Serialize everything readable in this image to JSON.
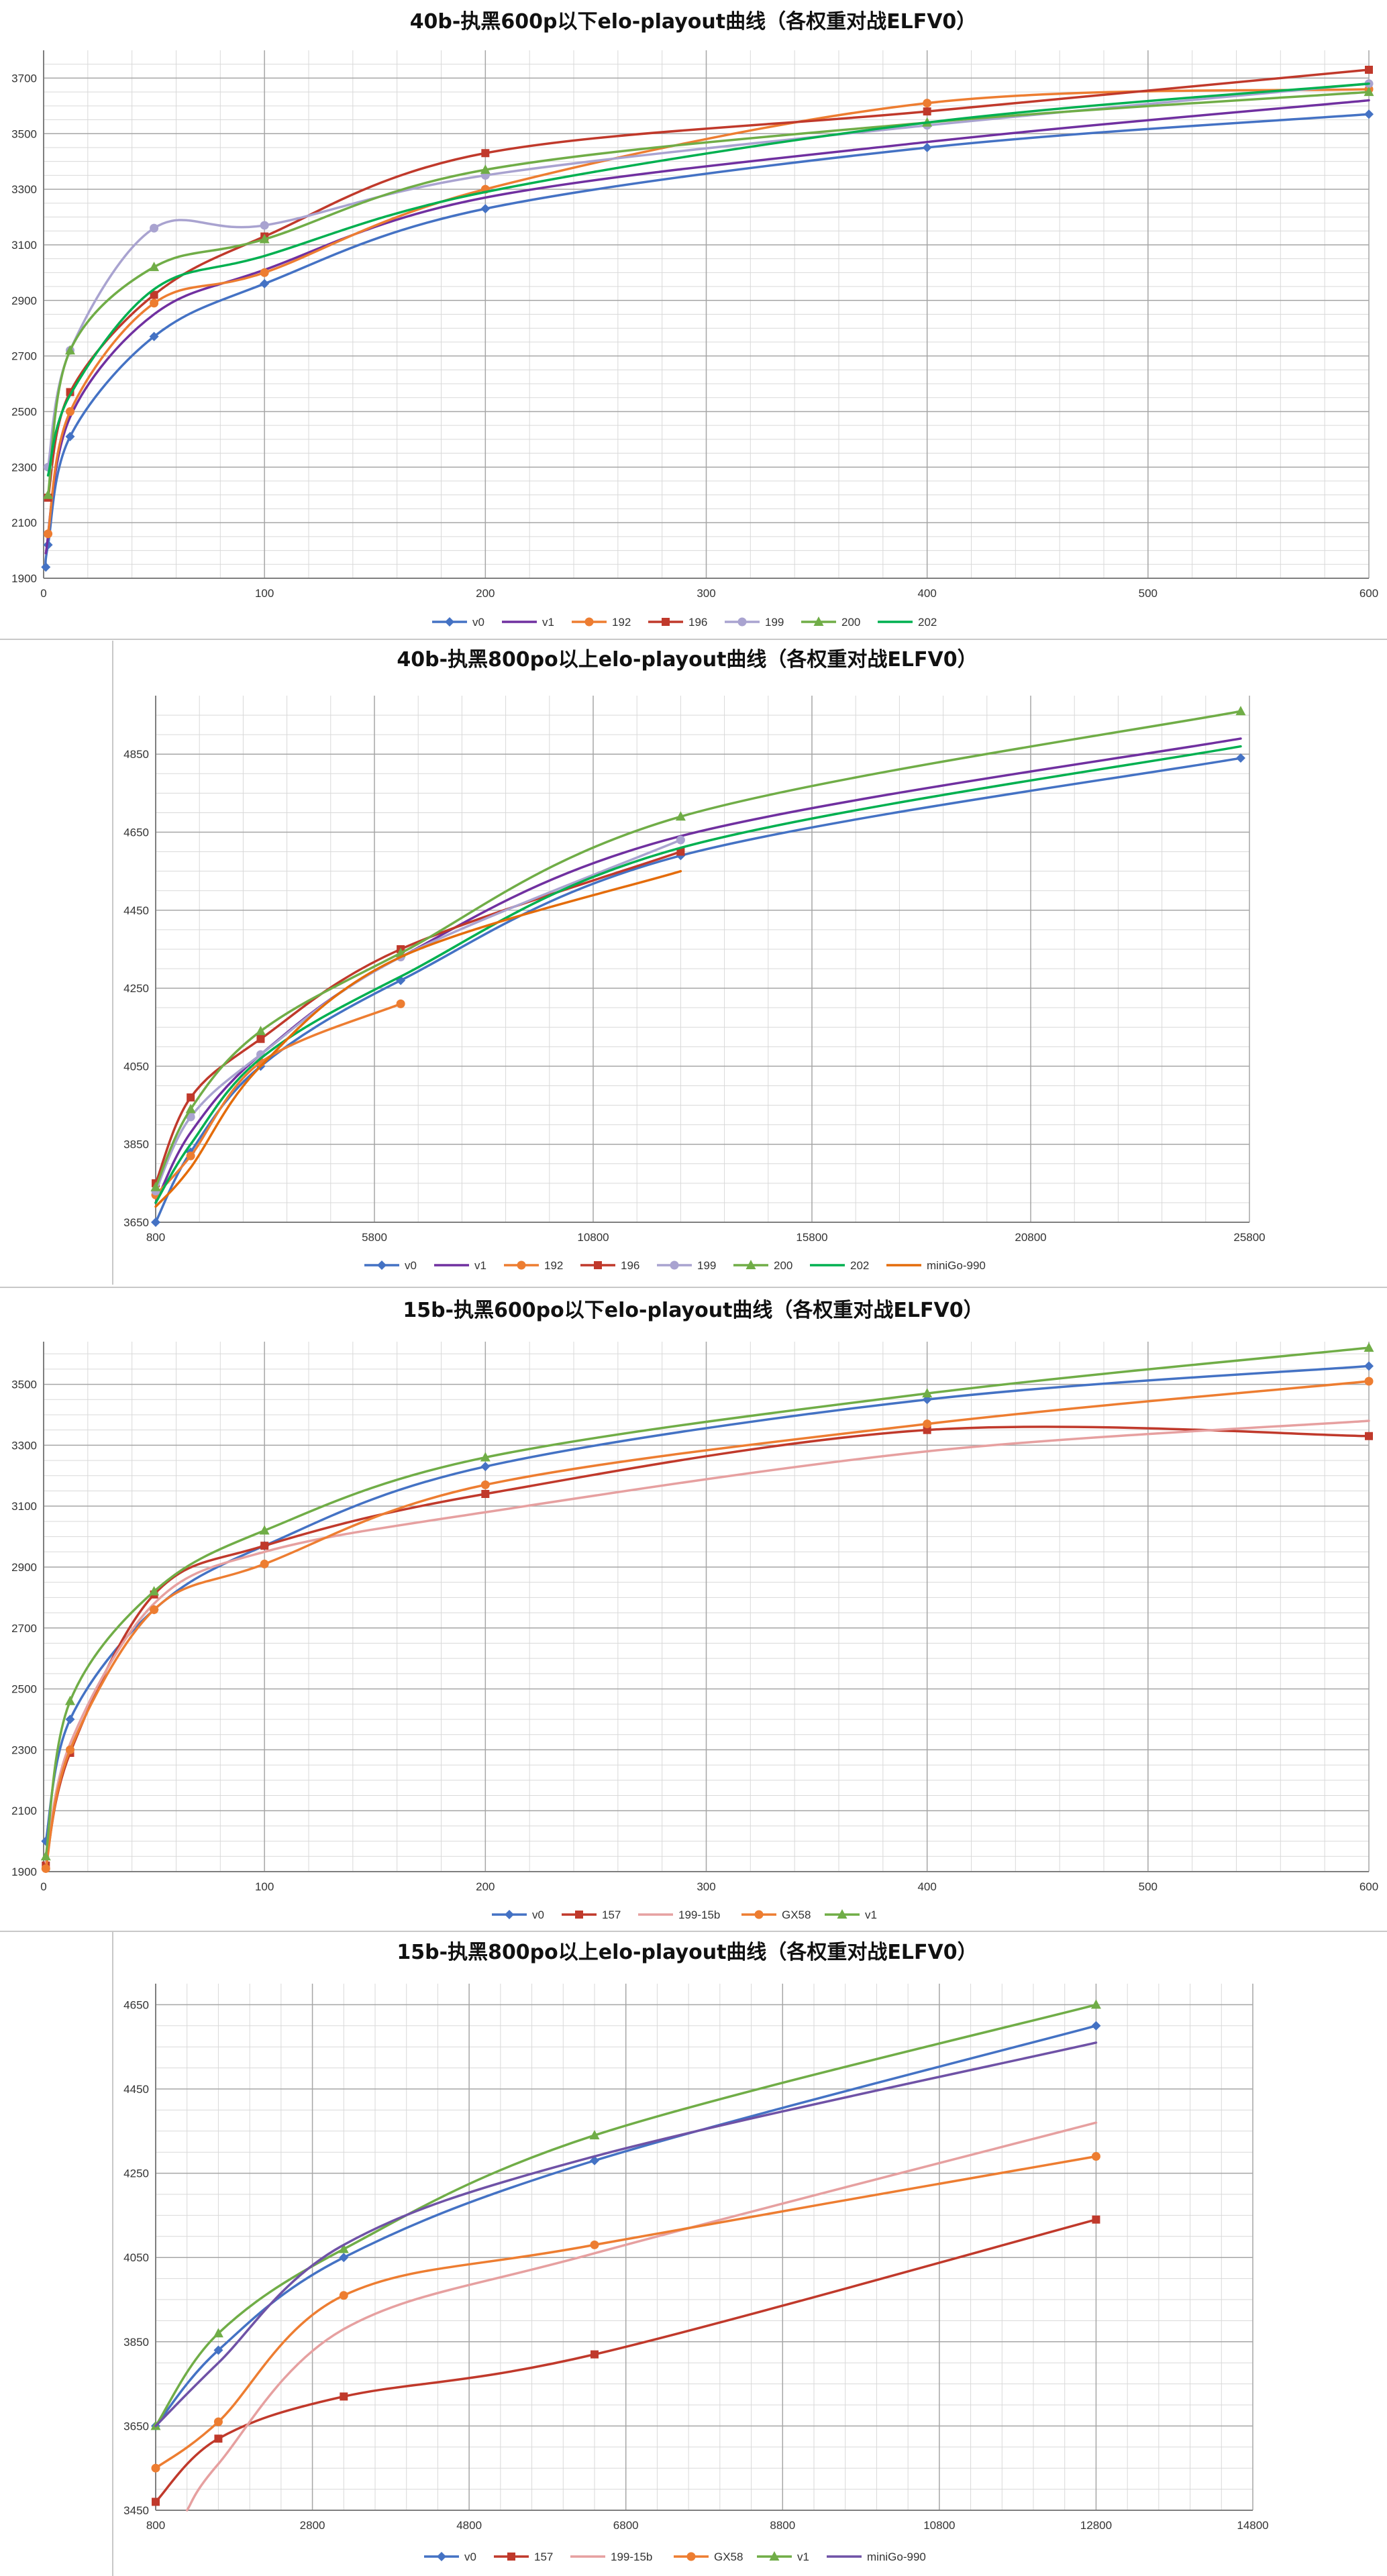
{
  "chart_data": [
    {
      "type": "line",
      "title": "40b-执黑600p以下elo-playout曲线（各权重对战ELFV0）",
      "xlim": [
        0,
        600
      ],
      "ylim": [
        1900,
        3800
      ],
      "xticks": [
        0,
        100,
        200,
        300,
        400,
        500,
        600
      ],
      "yticks": [
        1900,
        2100,
        2300,
        2500,
        2700,
        2900,
        3100,
        3300,
        3500,
        3700
      ],
      "x_minor_step": 20,
      "y_minor_step": 50,
      "grid": true,
      "legend": "bottom",
      "series": [
        {
          "name": "v0",
          "color": "#4472C4",
          "marker": "diamond",
          "points": [
            [
              1,
              1940
            ],
            [
              2,
              2020
            ],
            [
              12,
              2410
            ],
            [
              50,
              2770
            ],
            [
              100,
              2960
            ],
            [
              200,
              3230
            ],
            [
              400,
              3450
            ],
            [
              600,
              3570
            ]
          ]
        },
        {
          "name": "v1",
          "color": "#7030A0",
          "marker": "none",
          "points": [
            [
              1,
              1990
            ],
            [
              12,
              2480
            ],
            [
              50,
              2850
            ],
            [
              100,
              3010
            ],
            [
              200,
              3270
            ],
            [
              400,
              3470
            ],
            [
              600,
              3620
            ]
          ]
        },
        {
          "name": "192",
          "color": "#ED7D31",
          "marker": "circle",
          "points": [
            [
              2,
              2060
            ],
            [
              12,
              2500
            ],
            [
              50,
              2890
            ],
            [
              100,
              3000
            ],
            [
              200,
              3300
            ],
            [
              400,
              3610
            ],
            [
              600,
              3660
            ]
          ]
        },
        {
          "name": "196",
          "color": "#C0392B",
          "marker": "square",
          "points": [
            [
              2,
              2190
            ],
            [
              12,
              2570
            ],
            [
              50,
              2920
            ],
            [
              100,
              3130
            ],
            [
              200,
              3430
            ],
            [
              400,
              3580
            ],
            [
              600,
              3730
            ]
          ]
        },
        {
          "name": "199",
          "color": "#A9A3D0",
          "marker": "circle",
          "points": [
            [
              2,
              2300
            ],
            [
              12,
              2720
            ],
            [
              50,
              3160
            ],
            [
              100,
              3170
            ],
            [
              200,
              3350
            ],
            [
              400,
              3530
            ],
            [
              600,
              3680
            ]
          ]
        },
        {
          "name": "200",
          "color": "#70AD47",
          "marker": "triangle",
          "points": [
            [
              2,
              2200
            ],
            [
              12,
              2720
            ],
            [
              50,
              3020
            ],
            [
              100,
              3120
            ],
            [
              200,
              3370
            ],
            [
              400,
              3540
            ],
            [
              600,
              3650
            ]
          ]
        },
        {
          "name": "202",
          "color": "#00B050",
          "marker": "none",
          "points": [
            [
              2,
              2270
            ],
            [
              12,
              2560
            ],
            [
              50,
              2940
            ],
            [
              100,
              3060
            ],
            [
              200,
              3290
            ],
            [
              400,
              3540
            ],
            [
              600,
              3680
            ]
          ]
        }
      ]
    },
    {
      "type": "line",
      "title": "40b-执黑800po以上elo-playout曲线（各权重对战ELFV0）",
      "xlim": [
        800,
        25800
      ],
      "ylim": [
        3650,
        5000
      ],
      "xticks": [
        800,
        5800,
        10800,
        15800,
        20800,
        25800
      ],
      "yticks": [
        3650,
        3850,
        4050,
        4250,
        4450,
        4650,
        4850
      ],
      "x_minor_step": 1000,
      "y_minor_step": 50,
      "grid": true,
      "legend": "bottom",
      "series": [
        {
          "name": "v0",
          "color": "#4472C4",
          "marker": "diamond",
          "points": [
            [
              800,
              3650
            ],
            [
              1600,
              3830
            ],
            [
              3200,
              4050
            ],
            [
              6400,
              4270
            ],
            [
              12800,
              4590
            ],
            [
              25600,
              4840
            ]
          ]
        },
        {
          "name": "v1",
          "color": "#7030A0",
          "marker": "none",
          "points": [
            [
              800,
              3700
            ],
            [
              1600,
              3880
            ],
            [
              3200,
              4080
            ],
            [
              6400,
              4330
            ],
            [
              12800,
              4640
            ],
            [
              25600,
              4890
            ]
          ]
        },
        {
          "name": "192",
          "color": "#ED7D31",
          "marker": "circle",
          "points": [
            [
              800,
              3720
            ],
            [
              1600,
              3820
            ],
            [
              3200,
              4060
            ],
            [
              6400,
              4210
            ]
          ]
        },
        {
          "name": "196",
          "color": "#C0392B",
          "marker": "square",
          "points": [
            [
              800,
              3750
            ],
            [
              1600,
              3970
            ],
            [
              3200,
              4120
            ],
            [
              6400,
              4350
            ],
            [
              12800,
              4600
            ]
          ]
        },
        {
          "name": "199",
          "color": "#A9A3D0",
          "marker": "circle",
          "points": [
            [
              800,
              3730
            ],
            [
              1600,
              3920
            ],
            [
              3200,
              4080
            ],
            [
              6400,
              4330
            ],
            [
              12800,
              4630
            ]
          ]
        },
        {
          "name": "200",
          "color": "#70AD47",
          "marker": "triangle",
          "points": [
            [
              800,
              3740
            ],
            [
              1600,
              3940
            ],
            [
              3200,
              4140
            ],
            [
              6400,
              4340
            ],
            [
              12800,
              4690
            ],
            [
              25600,
              4960
            ]
          ]
        },
        {
          "name": "202",
          "color": "#00B050",
          "marker": "none",
          "points": [
            [
              800,
              3700
            ],
            [
              1600,
              3850
            ],
            [
              3200,
              4070
            ],
            [
              6400,
              4280
            ],
            [
              12800,
              4610
            ],
            [
              25600,
              4870
            ]
          ]
        },
        {
          "name": "miniGo-990",
          "color": "#E46C0A",
          "marker": "none",
          "points": [
            [
              800,
              3690
            ],
            [
              1600,
              3790
            ],
            [
              3200,
              4050
            ],
            [
              6400,
              4330
            ],
            [
              12800,
              4550
            ]
          ]
        }
      ]
    },
    {
      "type": "line",
      "title": "15b-执黑600po以下elo-playout曲线（各权重对战ELFV0）",
      "xlim": [
        0,
        600
      ],
      "ylim": [
        1900,
        3640
      ],
      "xticks": [
        0,
        100,
        200,
        300,
        400,
        500,
        600
      ],
      "yticks": [
        1900,
        2100,
        2300,
        2500,
        2700,
        2900,
        3100,
        3300,
        3500
      ],
      "x_minor_step": 20,
      "y_minor_step": 50,
      "grid": true,
      "legend": "bottom",
      "series": [
        {
          "name": "v0",
          "color": "#4472C4",
          "marker": "diamond",
          "points": [
            [
              1,
              2000
            ],
            [
              12,
              2400
            ],
            [
              50,
              2760
            ],
            [
              100,
              2970
            ],
            [
              200,
              3230
            ],
            [
              400,
              3450
            ],
            [
              600,
              3560
            ]
          ]
        },
        {
          "name": "157",
          "color": "#C0392B",
          "marker": "square",
          "points": [
            [
              1,
              1920
            ],
            [
              12,
              2290
            ],
            [
              50,
              2810
            ],
            [
              100,
              2970
            ],
            [
              200,
              3140
            ],
            [
              400,
              3350
            ],
            [
              600,
              3330
            ]
          ]
        },
        {
          "name": "199-15b",
          "color": "#E6A0A0",
          "marker": "none",
          "points": [
            [
              1,
              1930
            ],
            [
              12,
              2320
            ],
            [
              50,
              2780
            ],
            [
              100,
              2950
            ],
            [
              200,
              3080
            ],
            [
              400,
              3280
            ],
            [
              600,
              3380
            ]
          ]
        },
        {
          "name": "GX58",
          "color": "#ED7D31",
          "marker": "circle",
          "points": [
            [
              1,
              1910
            ],
            [
              12,
              2300
            ],
            [
              50,
              2760
            ],
            [
              100,
              2910
            ],
            [
              200,
              3170
            ],
            [
              400,
              3370
            ],
            [
              600,
              3510
            ]
          ]
        },
        {
          "name": "v1",
          "color": "#70AD47",
          "marker": "triangle",
          "points": [
            [
              1,
              1950
            ],
            [
              12,
              2460
            ],
            [
              50,
              2820
            ],
            [
              100,
              3020
            ],
            [
              200,
              3260
            ],
            [
              400,
              3470
            ],
            [
              600,
              3620
            ]
          ]
        }
      ]
    },
    {
      "type": "line",
      "title": "15b-执黑800po以上elo-playout曲线（各权重对战ELFV0）",
      "xlim": [
        800,
        14800
      ],
      "ylim": [
        3450,
        4700
      ],
      "xticks": [
        800,
        2800,
        4800,
        6800,
        8800,
        10800,
        12800,
        14800
      ],
      "yticks": [
        3450,
        3650,
        3850,
        4050,
        4250,
        4450,
        4650
      ],
      "x_minor_step": 400,
      "y_minor_step": 50,
      "grid": true,
      "legend": "bottom",
      "series": [
        {
          "name": "v0",
          "color": "#4472C4",
          "marker": "diamond",
          "points": [
            [
              800,
              3650
            ],
            [
              1600,
              3830
            ],
            [
              3200,
              4050
            ],
            [
              6400,
              4280
            ],
            [
              12800,
              4600
            ]
          ]
        },
        {
          "name": "157",
          "color": "#C0392B",
          "marker": "square",
          "points": [
            [
              800,
              3470
            ],
            [
              1600,
              3620
            ],
            [
              3200,
              3720
            ],
            [
              6400,
              3820
            ],
            [
              12800,
              4140
            ]
          ]
        },
        {
          "name": "199-15b",
          "color": "#E6A0A0",
          "marker": "none",
          "points": [
            [
              1200,
              3450
            ],
            [
              1600,
              3560
            ],
            [
              3200,
              3880
            ],
            [
              6400,
              4060
            ],
            [
              12800,
              4370
            ]
          ]
        },
        {
          "name": "GX58",
          "color": "#ED7D31",
          "marker": "circle",
          "points": [
            [
              800,
              3550
            ],
            [
              1600,
              3660
            ],
            [
              3200,
              3960
            ],
            [
              6400,
              4080
            ],
            [
              12800,
              4290
            ]
          ]
        },
        {
          "name": "v1",
          "color": "#70AD47",
          "marker": "triangle",
          "points": [
            [
              800,
              3650
            ],
            [
              1600,
              3870
            ],
            [
              3200,
              4070
            ],
            [
              6400,
              4340
            ],
            [
              12800,
              4650
            ]
          ]
        },
        {
          "name": "miniGo-990",
          "color": "#6F52A6",
          "marker": "none",
          "points": [
            [
              800,
              3650
            ],
            [
              1600,
              3800
            ],
            [
              3200,
              4080
            ],
            [
              6400,
              4290
            ],
            [
              12800,
              4560
            ]
          ]
        }
      ]
    }
  ]
}
